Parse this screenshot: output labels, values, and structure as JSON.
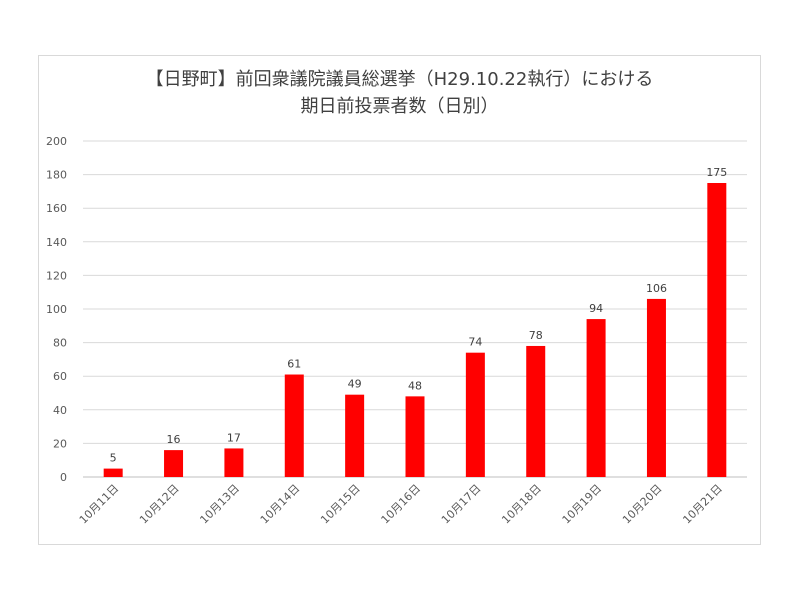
{
  "chart_data": {
    "type": "bar",
    "title_lines": [
      "【日野町】前回衆議院議員総選挙（H29.10.22執行）における",
      "期日前投票者数（日別）"
    ],
    "categories": [
      "10月11日",
      "10月12日",
      "10月13日",
      "10月14日",
      "10月15日",
      "10月16日",
      "10月17日",
      "10月18日",
      "10月19日",
      "10月20日",
      "10月21日"
    ],
    "values": [
      5,
      16,
      17,
      61,
      49,
      48,
      74,
      78,
      94,
      106,
      175
    ],
    "ylim": [
      0,
      200
    ],
    "yticks": [
      0,
      20,
      40,
      60,
      80,
      100,
      120,
      140,
      160,
      180,
      200
    ],
    "grid": true,
    "legend": "none",
    "bar_color": "#ff0000",
    "xlabel": "",
    "ylabel": ""
  }
}
